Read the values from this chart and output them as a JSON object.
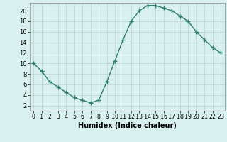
{
  "x": [
    0,
    1,
    2,
    3,
    4,
    5,
    6,
    7,
    8,
    9,
    10,
    11,
    12,
    13,
    14,
    15,
    16,
    17,
    18,
    19,
    20,
    21,
    22,
    23
  ],
  "y": [
    10,
    8.5,
    6.5,
    5.5,
    4.5,
    3.5,
    3.0,
    2.5,
    3.0,
    6.5,
    10.5,
    14.5,
    18,
    20,
    21,
    21,
    20.5,
    20,
    19,
    18,
    16,
    14.5,
    13,
    12
  ],
  "xlabel": "Humidex (Indice chaleur)",
  "xlim": [
    -0.5,
    23.5
  ],
  "ylim": [
    1,
    21.5
  ],
  "yticks": [
    2,
    4,
    6,
    8,
    10,
    12,
    14,
    16,
    18,
    20
  ],
  "xticks": [
    0,
    1,
    2,
    3,
    4,
    5,
    6,
    7,
    8,
    9,
    10,
    11,
    12,
    13,
    14,
    15,
    16,
    17,
    18,
    19,
    20,
    21,
    22,
    23
  ],
  "line_color": "#2e7d6e",
  "marker": "+",
  "marker_size": 4,
  "line_width": 1.0,
  "background_color": "#d8f0ee",
  "grid_color": "#b8d4d0",
  "xlabel_fontsize": 7,
  "tick_fontsize": 6,
  "xlabel_fontweight": "bold"
}
